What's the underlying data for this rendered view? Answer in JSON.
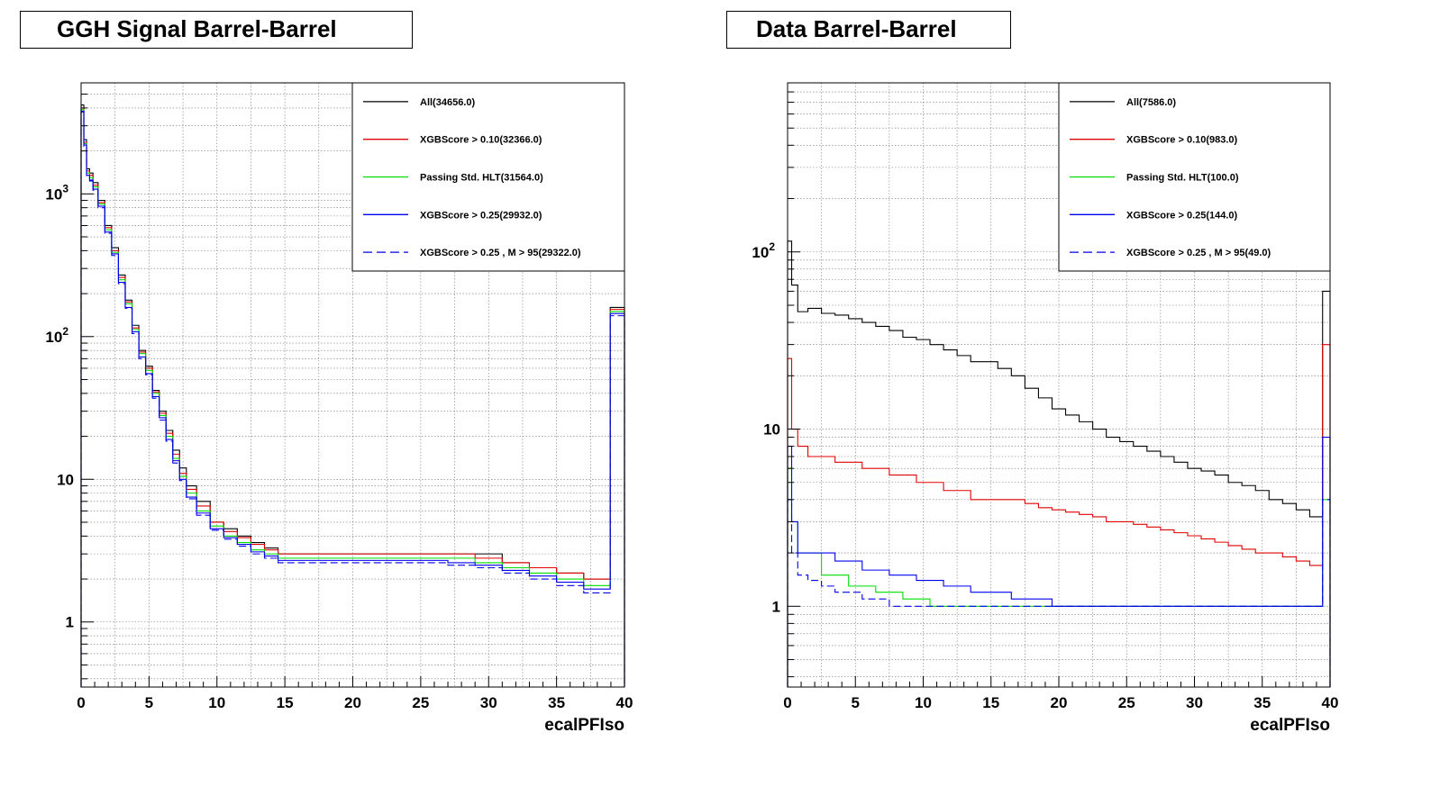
{
  "panels": [
    {
      "title": "GGH Signal Barrel-Barrel"
    },
    {
      "title": "Data Barrel-Barrel"
    }
  ],
  "chart_data": [
    {
      "type": "line",
      "title": "GGH Signal Barrel-Barrel",
      "xlabel": "ecalPFIso",
      "ylabel": "",
      "xlim": [
        0,
        40
      ],
      "ylim": [
        0.35,
        6000
      ],
      "y_scale": "log",
      "x_ticks": [
        0,
        5,
        10,
        15,
        20,
        25,
        30,
        35,
        40
      ],
      "y_ticks": [
        "1",
        "10",
        "10^2",
        "10^3"
      ],
      "grid": true,
      "legend_position": "top-right",
      "x": [
        0.1,
        0.3,
        0.5,
        0.75,
        1.0,
        1.5,
        2.0,
        2.5,
        3.0,
        3.5,
        4.0,
        4.5,
        5.0,
        5.5,
        6.0,
        6.5,
        7.0,
        7.5,
        8.0,
        9.0,
        10.0,
        11.0,
        12.0,
        13.0,
        14.0,
        15.0,
        16.0,
        17.0,
        18.0,
        20.0,
        22.0,
        24.0,
        26.0,
        28.0,
        30.0,
        32.0,
        34.0,
        36.0,
        38.0,
        39.9
      ],
      "series": [
        {
          "name": "All(34656.0)",
          "color": "#000000",
          "dash": "solid",
          "values": [
            4200,
            2400,
            1500,
            1400,
            1200,
            900,
            600,
            420,
            270,
            180,
            120,
            80,
            62,
            42,
            30,
            22,
            16,
            12,
            9,
            7,
            5,
            4.5,
            4,
            3.6,
            3.3,
            3,
            3,
            3,
            3,
            3,
            3,
            3,
            3,
            3,
            3,
            2.6,
            2.4,
            2.2,
            2,
            160
          ]
        },
        {
          "name": "XGBScore > 0.10(32366.0)",
          "color": "#e00000",
          "dash": "solid",
          "values": [
            4000,
            2300,
            1450,
            1350,
            1150,
            870,
            580,
            400,
            260,
            175,
            115,
            78,
            60,
            41,
            29,
            21,
            15,
            11,
            8.5,
            6.5,
            5,
            4.3,
            3.9,
            3.5,
            3.2,
            3,
            3,
            3,
            3,
            3,
            3,
            3,
            3,
            3,
            2.8,
            2.6,
            2.4,
            2.2,
            2,
            155
          ]
        },
        {
          "name": "Passing Std. HLT(31564.0)",
          "color": "#00dd00",
          "dash": "solid",
          "values": [
            3900,
            2250,
            1400,
            1300,
            1120,
            850,
            560,
            390,
            250,
            170,
            112,
            76,
            58,
            40,
            28,
            20,
            14,
            10.5,
            8,
            6,
            4.7,
            4,
            3.6,
            3.2,
            3,
            2.8,
            2.8,
            2.8,
            2.8,
            2.8,
            2.8,
            2.8,
            2.8,
            2.8,
            2.6,
            2.4,
            2.2,
            2,
            1.8,
            150
          ]
        },
        {
          "name": "XGBScore > 0.25(29932.0)",
          "color": "#0000ee",
          "dash": "solid",
          "values": [
            3800,
            2200,
            1350,
            1250,
            1080,
            820,
            540,
            380,
            240,
            160,
            108,
            72,
            55,
            38,
            27,
            19,
            13.5,
            10,
            7.5,
            5.8,
            4.5,
            3.9,
            3.5,
            3.1,
            2.9,
            2.7,
            2.7,
            2.7,
            2.7,
            2.7,
            2.7,
            2.7,
            2.7,
            2.6,
            2.5,
            2.3,
            2.1,
            1.9,
            1.7,
            145
          ]
        },
        {
          "name": "XGBScore > 0.25 , M > 95(29322.0)",
          "color": "#0000ee",
          "dash": "dashed",
          "values": [
            3750,
            2150,
            1320,
            1230,
            1060,
            800,
            530,
            370,
            235,
            158,
            105,
            70,
            54,
            37,
            26,
            18.5,
            13,
            9.8,
            7.3,
            5.6,
            4.4,
            3.8,
            3.4,
            3,
            2.8,
            2.6,
            2.6,
            2.6,
            2.6,
            2.6,
            2.6,
            2.6,
            2.6,
            2.5,
            2.4,
            2.2,
            2,
            1.8,
            1.6,
            140
          ]
        }
      ]
    },
    {
      "type": "line",
      "title": "Data Barrel-Barrel",
      "xlabel": "ecalPFIso",
      "ylabel": "",
      "xlim": [
        0,
        40
      ],
      "ylim": [
        0.35,
        900
      ],
      "y_scale": "log",
      "x_ticks": [
        0,
        5,
        10,
        15,
        20,
        25,
        30,
        35,
        40
      ],
      "y_ticks": [
        "1",
        "10",
        "10^2"
      ],
      "grid": true,
      "legend_position": "top-right",
      "x": [
        0.1,
        0.5,
        1,
        2,
        3,
        4,
        5,
        6,
        7,
        8,
        9,
        10,
        11,
        12,
        13,
        14,
        15,
        16,
        17,
        18,
        19,
        20,
        21,
        22,
        23,
        24,
        25,
        26,
        27,
        28,
        29,
        30,
        31,
        32,
        33,
        34,
        35,
        36,
        37,
        38,
        39,
        39.9
      ],
      "series": [
        {
          "name": "All(7586.0)",
          "color": "#000000",
          "dash": "solid",
          "values": [
            115,
            65,
            46,
            48,
            45,
            44,
            42,
            40,
            38,
            36,
            33,
            32,
            30,
            28,
            26,
            24,
            24,
            22,
            20,
            17,
            15,
            13,
            12,
            11,
            10,
            9,
            8.5,
            8,
            7.5,
            7,
            6.5,
            6,
            5.8,
            5.5,
            5,
            4.8,
            4.5,
            4,
            3.8,
            3.5,
            3.2,
            60
          ]
        },
        {
          "name": "XGBScore > 0.10(983.0)",
          "color": "#e00000",
          "dash": "solid",
          "values": [
            25,
            10,
            8,
            7,
            7,
            6.5,
            6.5,
            6,
            6,
            5.5,
            5.5,
            5,
            5,
            4.5,
            4.5,
            4,
            4,
            4,
            4,
            3.8,
            3.6,
            3.5,
            3.4,
            3.3,
            3.2,
            3,
            3,
            2.9,
            2.8,
            2.7,
            2.6,
            2.5,
            2.4,
            2.3,
            2.2,
            2.1,
            2,
            2,
            1.9,
            1.8,
            1.7,
            30
          ]
        },
        {
          "name": "Passing Std. HLT(100.0)",
          "color": "#00dd00",
          "dash": "solid",
          "values": [
            6,
            3,
            2,
            2,
            1.5,
            1.5,
            1.3,
            1.3,
            1.2,
            1.2,
            1.1,
            1.1,
            1,
            1,
            1,
            1,
            1,
            1,
            1,
            1,
            1,
            1,
            1,
            1,
            1,
            1,
            1,
            1,
            1,
            1,
            1,
            1,
            1,
            1,
            1,
            1,
            1,
            1,
            1,
            1,
            1,
            4
          ]
        },
        {
          "name": "XGBScore > 0.25(144.0)",
          "color": "#0000ee",
          "dash": "solid",
          "values": [
            8,
            3,
            2,
            2,
            2,
            1.8,
            1.8,
            1.6,
            1.6,
            1.5,
            1.5,
            1.4,
            1.4,
            1.3,
            1.3,
            1.2,
            1.2,
            1.2,
            1.1,
            1.1,
            1.1,
            1,
            1,
            1,
            1,
            1,
            1,
            1,
            1,
            1,
            1,
            1,
            1,
            1,
            1,
            1,
            1,
            1,
            1,
            1,
            1,
            9
          ]
        },
        {
          "name": "XGBScore > 0.25 , M > 95(49.0)",
          "color": "#0000ee",
          "dash": "dashed",
          "values": [
            4,
            2,
            1.5,
            1.4,
            1.3,
            1.2,
            1.2,
            1.1,
            1.1,
            1,
            1,
            1,
            1,
            1,
            1,
            1,
            1,
            1,
            1,
            1,
            1,
            1,
            1,
            1,
            1,
            1,
            1,
            1,
            1,
            1,
            1,
            1,
            1,
            1,
            1,
            1,
            1,
            1,
            1,
            1,
            1,
            4
          ]
        }
      ]
    }
  ]
}
